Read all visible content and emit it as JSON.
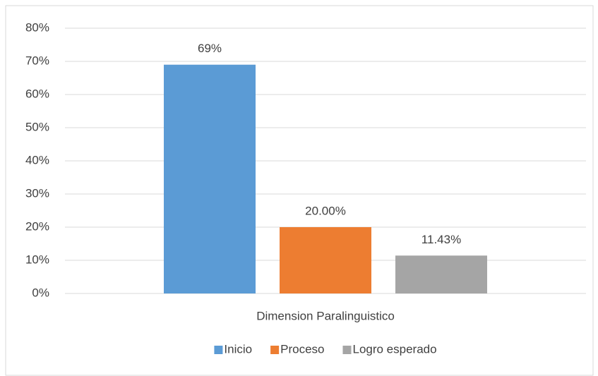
{
  "chart_data": {
    "type": "bar",
    "categories": [
      "Dimension Paralinguistico"
    ],
    "series": [
      {
        "name": "Inicio",
        "color": "#5b9bd5",
        "values": [
          69
        ],
        "value_labels": [
          "69%"
        ]
      },
      {
        "name": "Proceso",
        "color": "#ed7d31",
        "values": [
          20.0
        ],
        "value_labels": [
          "20.00%"
        ]
      },
      {
        "name": "Logro esperado",
        "color": "#a5a5a5",
        "values": [
          11.43
        ],
        "value_labels": [
          "11.43%"
        ]
      }
    ],
    "ylim": [
      0,
      80
    ],
    "yticks": [
      {
        "value": 0,
        "label": "0%"
      },
      {
        "value": 10,
        "label": "10%"
      },
      {
        "value": 20,
        "label": "20%"
      },
      {
        "value": 30,
        "label": "30%"
      },
      {
        "value": 40,
        "label": "40%"
      },
      {
        "value": 50,
        "label": "50%"
      },
      {
        "value": 60,
        "label": "60%"
      },
      {
        "value": 70,
        "label": "70%"
      },
      {
        "value": 80,
        "label": "80%"
      }
    ],
    "grid": true,
    "legend": "bottom"
  }
}
